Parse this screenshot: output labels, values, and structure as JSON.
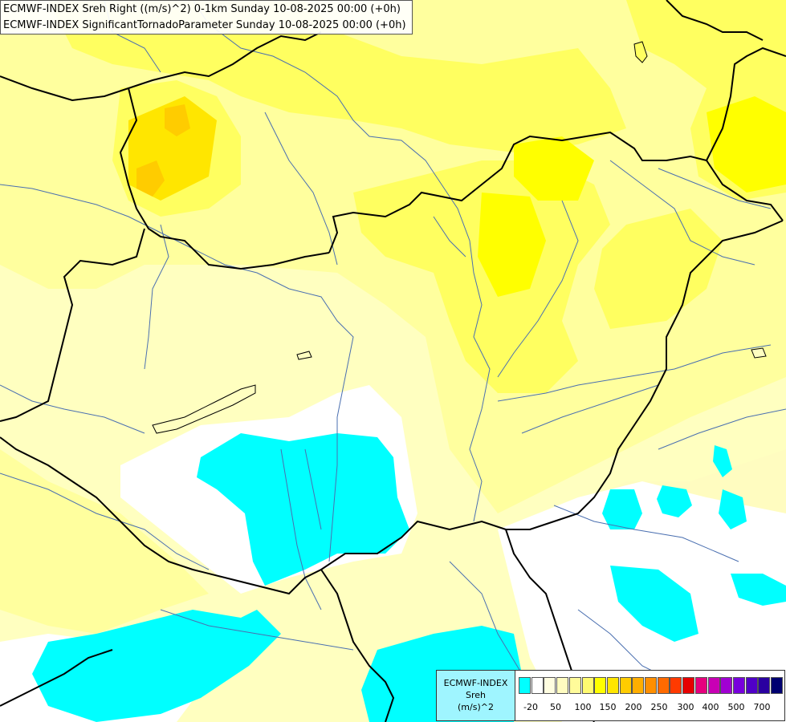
{
  "header": {
    "line1": "ECMWF-INDEX Sreh Right ((m/s)^2) 0-1km Sunday 10-08-2025 00:00 (+0h)",
    "line2": "ECMWF-INDEX SignificantTornadoParameter Sunday 10-08-2025 00:00 (+0h)"
  },
  "legend": {
    "title1": "ECMWF-INDEX",
    "title2": "Sreh",
    "unit": "(m/s)^2",
    "ticks": [
      "-20",
      "50",
      "100",
      "150",
      "200",
      "250",
      "300",
      "400",
      "500",
      "700"
    ],
    "colors": [
      "#00ffff",
      "#ffffff",
      "#fffde0",
      "#fffcc0",
      "#fffb9a",
      "#fffa70",
      "#ffff00",
      "#ffe600",
      "#ffcc00",
      "#ffae00",
      "#ff8f00",
      "#ff6a00",
      "#ff3a00",
      "#e60000",
      "#e6007e",
      "#c800b4",
      "#a000d2",
      "#7800dc",
      "#5000c8",
      "#2a00a0",
      "#000070"
    ]
  },
  "colors": {
    "cyan": "#00ffff",
    "pale_yellow": "#ffffc0",
    "light_yellow": "#ffff9e",
    "yellow": "#ffff60",
    "bright_yellow": "#ffff00",
    "gold": "#ffe600",
    "orange": "#ffcc00",
    "border": "#000000",
    "river": "#4a6fb0"
  }
}
